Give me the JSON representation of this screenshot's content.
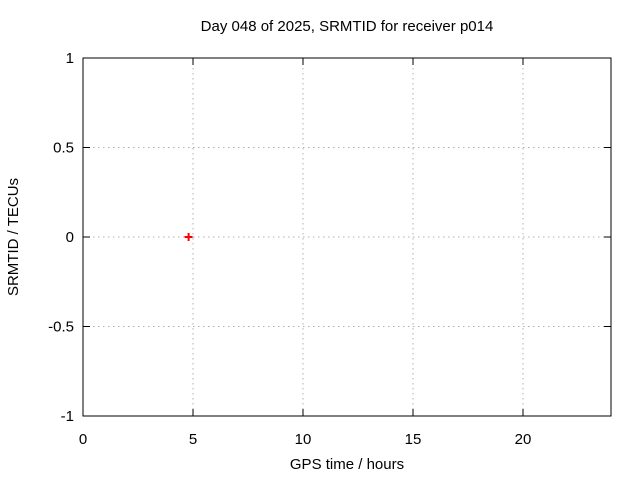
{
  "chart_data": {
    "type": "scatter",
    "title": "Day 048 of 2025, SRMTID for receiver p014",
    "xlabel": "GPS time / hours",
    "ylabel": "SRMTID / TECUs",
    "xlim": [
      0,
      24
    ],
    "ylim": [
      -1,
      1
    ],
    "xticks": [
      0,
      5,
      10,
      15,
      20
    ],
    "yticks": [
      -1,
      -0.5,
      0,
      0.5,
      1
    ],
    "grid": "dotted",
    "legend": "none",
    "colors": {
      "background": "#ffffff",
      "foreground": "#000000",
      "grid": "#b0b0b0",
      "marker": "#ff0000"
    },
    "series": [
      {
        "name": "SRMTID",
        "marker": "plus",
        "color": "#ff0000",
        "points": [
          {
            "x": 4.8,
            "y": 0.0
          }
        ]
      }
    ]
  }
}
